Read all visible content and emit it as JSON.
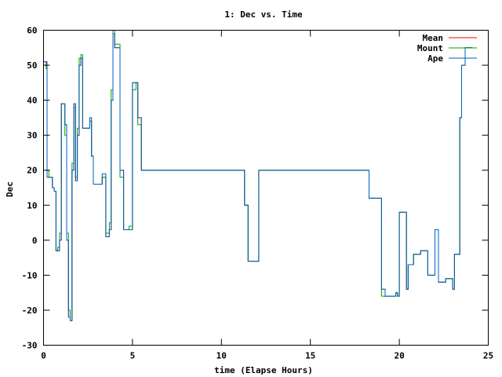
{
  "chart_data": {
    "type": "line",
    "title": "1: Dec vs. Time",
    "xlabel": "time (Elapse Hours)",
    "ylabel": "Dec",
    "xlim": [
      0,
      25
    ],
    "ylim": [
      -30,
      60
    ],
    "x_ticks": [
      0,
      5,
      10,
      15,
      20,
      25
    ],
    "y_ticks": [
      -30,
      -20,
      -10,
      0,
      10,
      20,
      30,
      40,
      50,
      60
    ],
    "grid": false,
    "legend_position": "top-right",
    "series": [
      {
        "name": "Mean",
        "color": "#ff0000",
        "x": [
          0,
          0.15,
          0.2,
          0.3,
          0.5,
          0.6,
          0.7,
          0.8,
          0.9,
          1.0,
          1.1,
          1.2,
          1.3,
          1.4,
          1.5,
          1.6,
          1.7,
          1.8,
          1.9,
          2.0,
          2.1,
          2.2,
          2.3,
          2.4,
          2.5,
          2.6,
          2.7,
          2.8,
          2.9,
          3.0,
          3.1,
          3.3,
          3.5,
          3.6,
          3.7,
          3.8,
          3.9,
          4.0,
          4.2,
          4.3,
          4.5,
          4.6,
          4.8,
          5.0,
          5.2,
          5.3,
          5.5,
          5.6,
          5.7,
          11.2,
          11.3,
          11.5,
          11.7,
          12.0,
          12.1,
          18.2,
          18.3,
          18.5,
          18.8,
          19.0,
          19.2,
          19.5,
          19.7,
          19.8,
          19.9,
          20.0,
          20.2,
          20.4,
          20.5,
          20.6,
          20.8,
          21.0,
          21.2,
          21.4,
          21.6,
          21.8,
          22.0,
          22.2,
          22.4,
          22.5,
          22.6,
          22.8,
          23.0,
          23.1,
          23.2,
          23.3,
          23.4,
          23.5,
          23.7,
          23.9,
          24.1
        ],
        "y": [
          51,
          50,
          18,
          18,
          15,
          14,
          -3,
          -3,
          0,
          39,
          39,
          33,
          0,
          -22,
          -23,
          20,
          39,
          17,
          30,
          50,
          52,
          32,
          32,
          32,
          32,
          34,
          24,
          16,
          16,
          16,
          16,
          18,
          1,
          1,
          3,
          40,
          59,
          55,
          55,
          20,
          3,
          3,
          3,
          45,
          45,
          35,
          20,
          20,
          20,
          20,
          10,
          -6,
          -6,
          -6,
          20,
          20,
          12,
          12,
          12,
          -14,
          -16,
          -16,
          -16,
          -15,
          -16,
          8,
          8,
          -14,
          -7,
          -7,
          -4,
          -4,
          -3,
          -3,
          -10,
          -10,
          3,
          -12,
          -12,
          -12,
          -11,
          -11,
          -14,
          -4,
          -4,
          -4,
          35,
          50,
          55,
          55,
          55
        ]
      },
      {
        "name": "Mount",
        "color": "#00a000",
        "x": [
          0,
          0.15,
          0.2,
          0.3,
          0.5,
          0.6,
          0.7,
          0.8,
          0.9,
          1.0,
          1.1,
          1.2,
          1.3,
          1.4,
          1.5,
          1.6,
          1.7,
          1.8,
          1.9,
          2.0,
          2.1,
          2.2,
          2.3,
          2.4,
          2.5,
          2.6,
          2.7,
          2.8,
          2.9,
          3.0,
          3.1,
          3.3,
          3.5,
          3.6,
          3.7,
          3.8,
          3.9,
          4.0,
          4.2,
          4.3,
          4.5,
          4.6,
          4.8,
          5.0,
          5.2,
          5.3,
          5.5,
          5.6,
          5.7,
          11.2,
          11.3,
          11.5,
          11.7,
          12.0,
          12.1,
          18.2,
          18.3,
          18.5,
          18.8,
          19.0,
          19.2,
          19.5,
          19.7,
          19.8,
          19.9,
          20.0,
          20.2,
          20.4,
          20.5,
          20.6,
          20.8,
          21.0,
          21.2,
          21.4,
          21.6,
          21.8,
          22.0,
          22.2,
          22.4,
          22.5,
          22.6,
          22.8,
          23.0,
          23.1,
          23.2,
          23.3,
          23.4,
          23.5,
          23.7,
          23.9,
          24.1
        ],
        "y": [
          50,
          49,
          20,
          18,
          15,
          14,
          -3,
          -2,
          2,
          39,
          39,
          30,
          2,
          -20,
          -23,
          22,
          38,
          18,
          32,
          52,
          53,
          32,
          32,
          32,
          32,
          34,
          24,
          16,
          16,
          16,
          16,
          18,
          2,
          2,
          5,
          43,
          60,
          56,
          56,
          18,
          3,
          3,
          4,
          43,
          45,
          33,
          20,
          20,
          20,
          20,
          10,
          -6,
          -6,
          -6,
          20,
          20,
          12,
          12,
          12,
          -16,
          -16,
          -16,
          -16,
          -15,
          -16,
          8,
          8,
          -14,
          -7,
          -7,
          -4,
          -4,
          -3,
          -3,
          -10,
          -10,
          3,
          -12,
          -12,
          -12,
          -11,
          -11,
          -14,
          -4,
          -4,
          -4,
          35,
          50,
          55,
          55,
          55
        ]
      },
      {
        "name": "Ape",
        "color": "#0060c0",
        "x": [
          0,
          0.15,
          0.2,
          0.3,
          0.5,
          0.6,
          0.7,
          0.8,
          0.9,
          1.0,
          1.1,
          1.2,
          1.3,
          1.4,
          1.5,
          1.6,
          1.7,
          1.8,
          1.9,
          2.0,
          2.1,
          2.2,
          2.3,
          2.4,
          2.5,
          2.6,
          2.7,
          2.8,
          2.9,
          3.0,
          3.1,
          3.3,
          3.5,
          3.6,
          3.7,
          3.8,
          3.9,
          4.0,
          4.2,
          4.3,
          4.5,
          4.6,
          4.8,
          5.0,
          5.2,
          5.3,
          5.5,
          5.6,
          5.7,
          11.2,
          11.3,
          11.5,
          11.7,
          12.0,
          12.1,
          18.2,
          18.3,
          18.5,
          18.8,
          19.0,
          19.2,
          19.5,
          19.7,
          19.8,
          19.9,
          20.0,
          20.2,
          20.4,
          20.5,
          20.6,
          20.8,
          21.0,
          21.2,
          21.4,
          21.6,
          21.8,
          22.0,
          22.2,
          22.4,
          22.5,
          22.6,
          22.8,
          23.0,
          23.1,
          23.2,
          23.3,
          23.4,
          23.5,
          23.7,
          23.9,
          24.1
        ],
        "y": [
          51,
          51,
          18,
          18,
          15,
          14,
          -3,
          -3,
          0,
          39,
          39,
          33,
          0,
          -22,
          -23,
          20,
          39,
          17,
          30,
          50,
          52,
          32,
          32,
          32,
          32,
          35,
          24,
          16,
          16,
          16,
          16,
          19,
          1,
          1,
          3,
          40,
          59,
          55,
          55,
          20,
          3,
          3,
          3,
          45,
          45,
          35,
          20,
          20,
          20,
          20,
          10,
          -6,
          -6,
          -6,
          20,
          20,
          12,
          12,
          12,
          -14,
          -16,
          -16,
          -16,
          -15,
          -16,
          8,
          8,
          -14,
          -7,
          -7,
          -4,
          -4,
          -3,
          -3,
          -10,
          -10,
          3,
          -12,
          -12,
          -12,
          -11,
          -11,
          -14,
          -4,
          -4,
          -4,
          35,
          50,
          55,
          55,
          55
        ]
      }
    ]
  }
}
